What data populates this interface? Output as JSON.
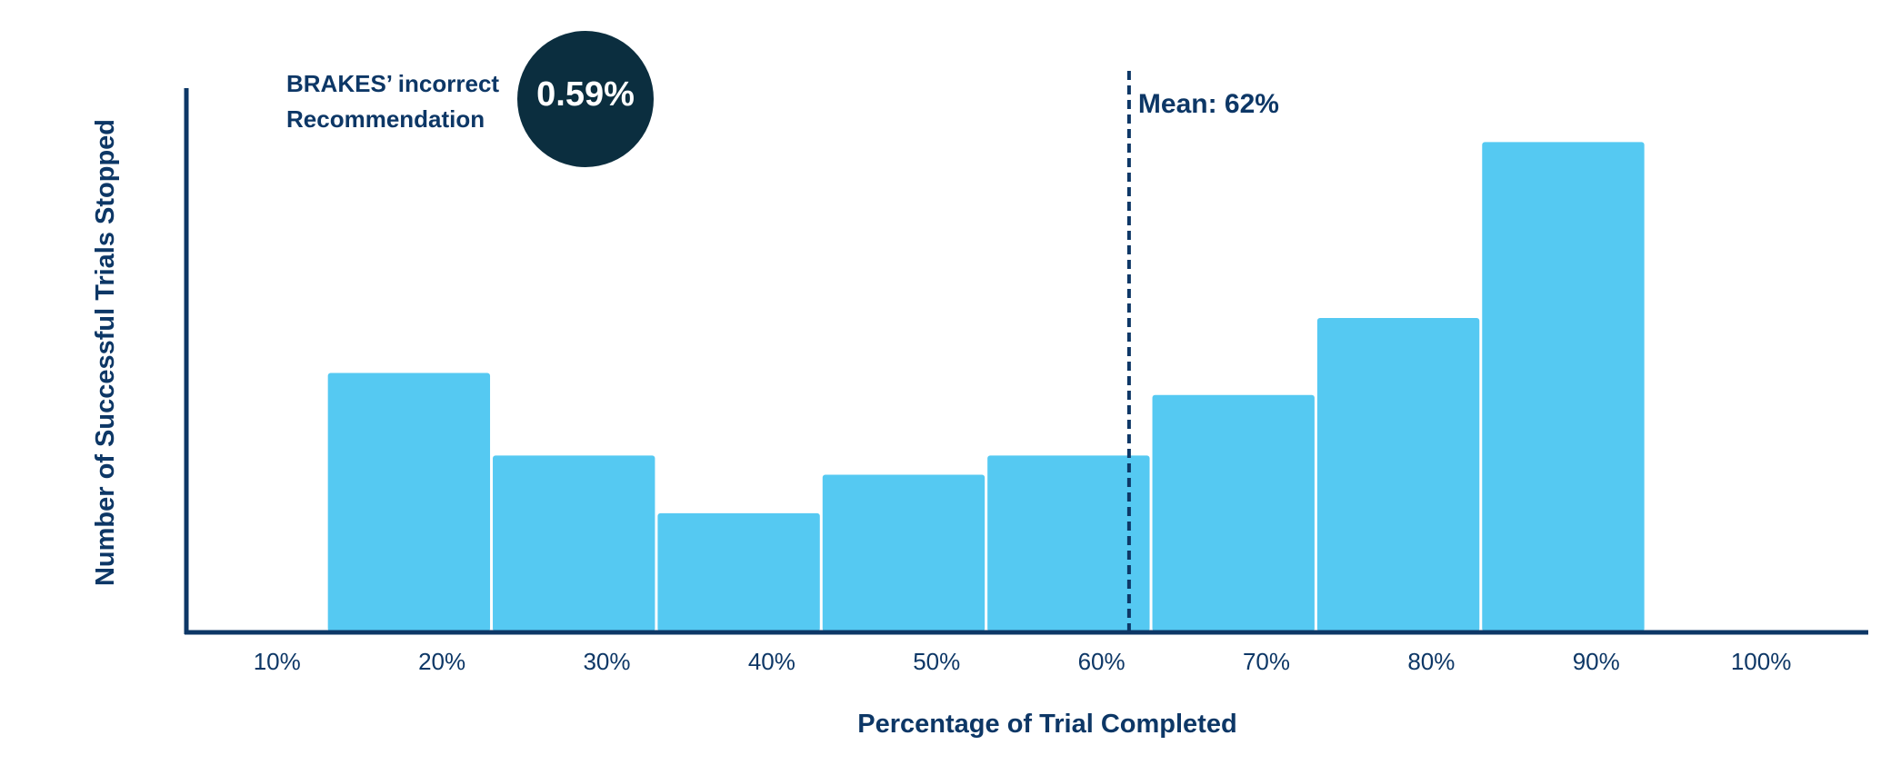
{
  "chart_data": {
    "type": "bar",
    "bins": [
      {
        "from": 13,
        "to": 23,
        "value": 47
      },
      {
        "from": 23,
        "to": 33,
        "value": 32
      },
      {
        "from": 33,
        "to": 43,
        "value": 21.5
      },
      {
        "from": 43,
        "to": 53,
        "value": 28.5
      },
      {
        "from": 53,
        "to": 63,
        "value": 32
      },
      {
        "from": 63,
        "to": 73,
        "value": 43
      },
      {
        "from": 73,
        "to": 83,
        "value": 57
      },
      {
        "from": 83,
        "to": 93,
        "value": 89
      }
    ],
    "x_ticks": [
      {
        "value": 10,
        "label": "10%"
      },
      {
        "value": 20,
        "label": "20%"
      },
      {
        "value": 30,
        "label": "30%"
      },
      {
        "value": 40,
        "label": "40%"
      },
      {
        "value": 50,
        "label": "50%"
      },
      {
        "value": 60,
        "label": "60%"
      },
      {
        "value": 70,
        "label": "70%"
      },
      {
        "value": 80,
        "label": "80%"
      },
      {
        "value": 90,
        "label": "90%"
      },
      {
        "value": 100,
        "label": "100%"
      }
    ],
    "xlim": [
      4.5,
      106.5
    ],
    "ylim": [
      0,
      95
    ],
    "xlabel": "Percentage of Trial Completed",
    "ylabel": "Number of Successful Trials Stopped",
    "grid": false,
    "mean": {
      "value": 62,
      "label": "Mean: 62%"
    },
    "callout": {
      "text_lines": [
        "BRAKES’ incorrect",
        "Recommendation"
      ],
      "value": "0.59%"
    },
    "colors": {
      "bar": "#55c9f2",
      "axis": "#0d3766",
      "badge": "#0b2e3f",
      "text": "#0d3766"
    }
  }
}
